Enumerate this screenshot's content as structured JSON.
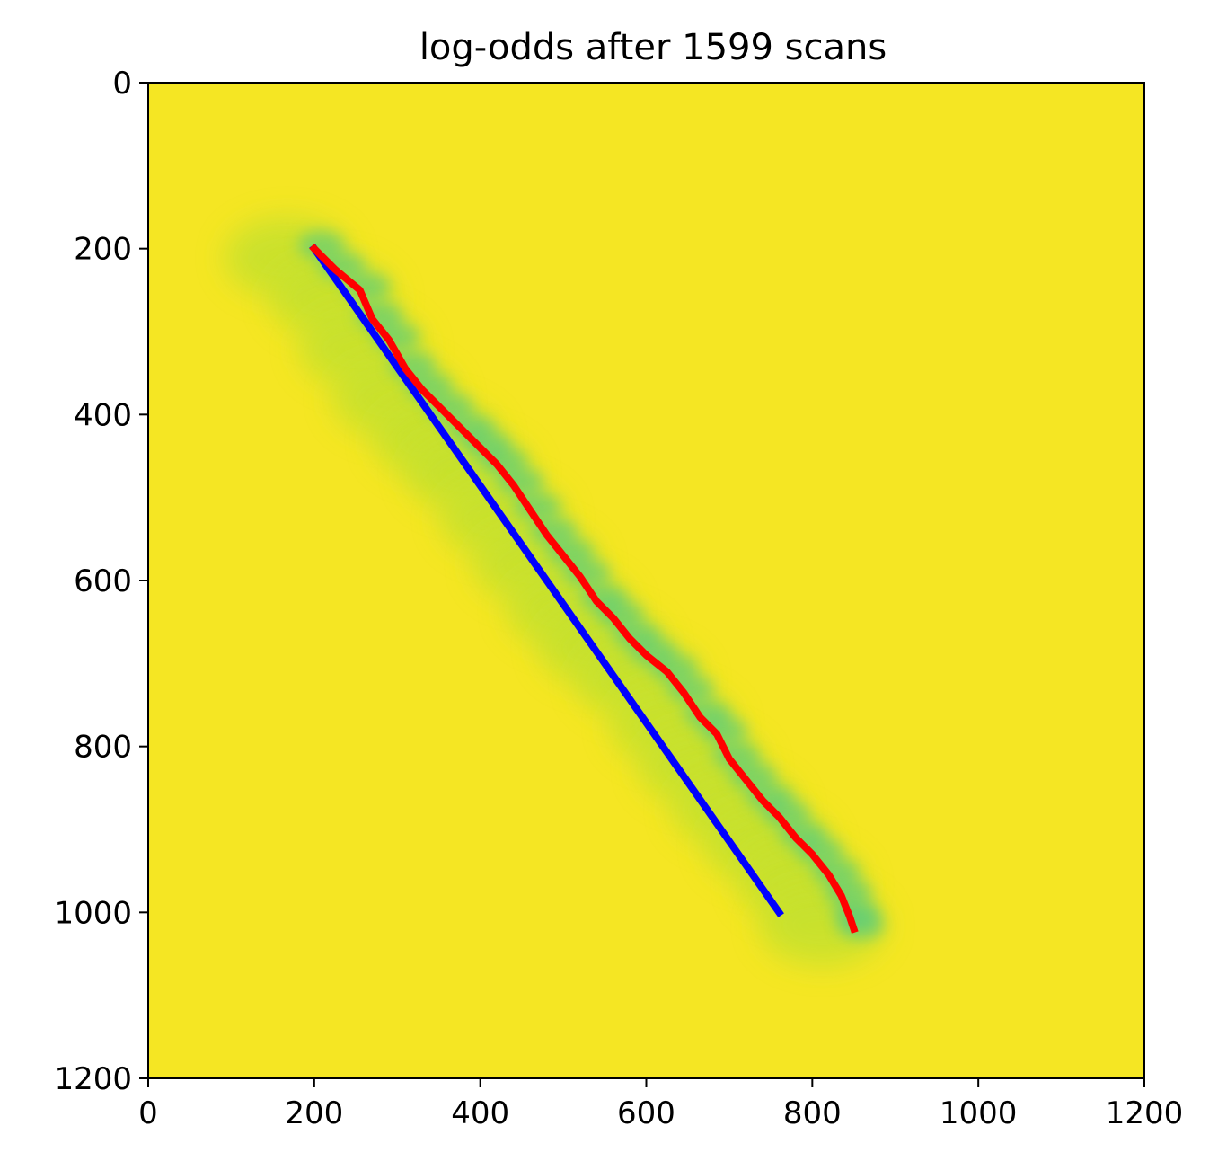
{
  "chart_data": {
    "type": "heatmap",
    "title": "log-odds after 1599 scans",
    "xlabel": "",
    "ylabel": "",
    "xlim": [
      0,
      1200
    ],
    "ylim": [
      1200,
      0
    ],
    "x_ticks": [
      0,
      200,
      400,
      600,
      800,
      1000,
      1200
    ],
    "y_ticks": [
      0,
      200,
      400,
      600,
      800,
      1000,
      1200
    ],
    "background_color": "#f5e623",
    "colors": {
      "low": "#46c98a",
      "mid": "#c5e12e",
      "high": "#f5e623"
    },
    "grid": false,
    "series": [
      {
        "color": "#ff0000",
        "points": [
          [
            200,
            200
          ],
          [
            225,
            225
          ],
          [
            255,
            250
          ],
          [
            270,
            285
          ],
          [
            290,
            310
          ],
          [
            310,
            345
          ],
          [
            330,
            370
          ],
          [
            355,
            395
          ],
          [
            380,
            420
          ],
          [
            400,
            440
          ],
          [
            420,
            460
          ],
          [
            440,
            485
          ],
          [
            460,
            515
          ],
          [
            480,
            545
          ],
          [
            500,
            570
          ],
          [
            520,
            595
          ],
          [
            540,
            625
          ],
          [
            560,
            645
          ],
          [
            580,
            670
          ],
          [
            600,
            690
          ],
          [
            625,
            710
          ],
          [
            645,
            735
          ],
          [
            665,
            765
          ],
          [
            685,
            785
          ],
          [
            700,
            815
          ],
          [
            720,
            840
          ],
          [
            740,
            865
          ],
          [
            760,
            885
          ],
          [
            780,
            910
          ],
          [
            800,
            930
          ],
          [
            820,
            955
          ],
          [
            835,
            980
          ],
          [
            845,
            1005
          ],
          [
            850,
            1020
          ]
        ]
      },
      {
        "color": "#0000ff",
        "points": [
          [
            200,
            200
          ],
          [
            760,
            1000
          ]
        ]
      }
    ]
  }
}
